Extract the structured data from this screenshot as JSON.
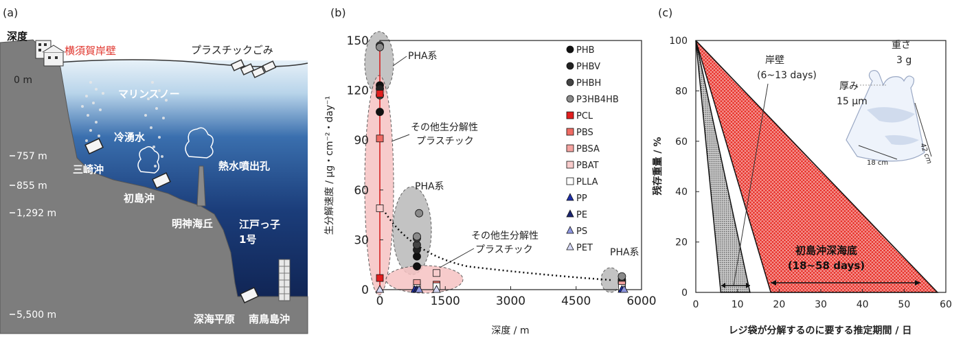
{
  "panel_labels": [
    "(a)",
    "(b)",
    "(c)"
  ],
  "panel_a": {
    "depth_heading": "深度",
    "surface_depth": "0 m",
    "yokosuka_label": "横須賀岸壁",
    "plastic_waste_label": "プラスチックごみ",
    "marine_snow_label": "マリンスノー",
    "cold_seep_label": "冷湧水",
    "hydrothermal_vent_label": "熱水噴出孔",
    "misaki_label": "三崎沖",
    "hatsushima_label": "初島沖",
    "myojin_label": "明神海丘",
    "edokko_label": "江戸っ子\n1号",
    "abyssal_plain_label": "深海平原",
    "minamitorishima_label": "南鳥島沖",
    "depth_marks": [
      "757 m",
      "855 m",
      "1,292 m",
      "5,500 m"
    ],
    "colors": {
      "land": "#7d7d7d",
      "sea_top": "#dbeaf5",
      "sea_mid": "#2a5a98",
      "sea_deep": "#0d1f4c",
      "yokosuka": "#e0342c"
    }
  },
  "chart_data": [
    {
      "type": "scatter",
      "panel": "(b)",
      "xlabel": "深度 / m",
      "ylabel": "生分解速度 / μg・cm⁻²・day⁻¹",
      "xlim": [
        0,
        6000
      ],
      "ylim": [
        0,
        150
      ],
      "xticks": [
        0,
        1500,
        3000,
        4500,
        6000
      ],
      "yticks": [
        0,
        30,
        60,
        90,
        120,
        150
      ],
      "series": [
        {
          "name": "PHB",
          "marker": "circle",
          "color": "#111111",
          "x": [
            0,
            0,
            850,
            850,
            5550
          ],
          "y": [
            123,
            107,
            20,
            14,
            5
          ]
        },
        {
          "name": "PHBV",
          "marker": "circle",
          "color": "#222222",
          "x": [
            0,
            850,
            5550
          ],
          "y": [
            121,
            24,
            6
          ]
        },
        {
          "name": "PHBH",
          "marker": "circle",
          "color": "#444444",
          "x": [
            0,
            0,
            850,
            850,
            5550
          ],
          "y": [
            117,
            147,
            27,
            31,
            4
          ]
        },
        {
          "name": "P3HB4HB",
          "marker": "circle",
          "color": "#8a8a8a",
          "x": [
            0,
            900,
            850,
            5550
          ],
          "y": [
            146,
            46,
            32,
            8
          ]
        },
        {
          "name": "PCL",
          "marker": "square",
          "color": "#e11f1f",
          "x": [
            0,
            0
          ],
          "y": [
            118,
            7
          ]
        },
        {
          "name": "PBS",
          "marker": "square",
          "color": "#ef6b63",
          "x": [
            0,
            850,
            1300,
            5550
          ],
          "y": [
            91,
            3,
            3,
            3
          ]
        },
        {
          "name": "PBSA",
          "marker": "square",
          "color": "#f4a3a0",
          "x": [
            850,
            5550
          ],
          "y": [
            4,
            3
          ]
        },
        {
          "name": "PBAT",
          "marker": "square",
          "color": "#f8cccc",
          "x": [
            0,
            1300
          ],
          "y": [
            49,
            10
          ]
        },
        {
          "name": "PLLA",
          "marker": "square",
          "color": "#ffffff",
          "x": [
            850,
            1300,
            5550
          ],
          "y": [
            1,
            2,
            1
          ]
        },
        {
          "name": "PP",
          "marker": "triangle",
          "color": "#1f2fa8",
          "x": [
            0,
            800,
            1300,
            5550
          ],
          "y": [
            0,
            0,
            0,
            0
          ]
        },
        {
          "name": "PE",
          "marker": "triangle",
          "color": "#1a2470",
          "x": [
            850
          ],
          "y": [
            0
          ]
        },
        {
          "name": "PS",
          "marker": "triangle",
          "color": "#8d95de",
          "x": [
            900,
            5600
          ],
          "y": [
            0,
            0
          ]
        },
        {
          "name": "PET",
          "marker": "triangle",
          "color": "#d5d8f5",
          "x": [
            0,
            1300
          ],
          "y": [
            0,
            0
          ]
        }
      ],
      "annotations": [
        "PHA系",
        "その他生分解性\nプラスチック",
        "PHA系",
        "その他生分解性\nプラスチック",
        "PHA系"
      ]
    },
    {
      "type": "area",
      "panel": "(c)",
      "xlabel": "レジ袋が分解するのに要する推定期間 / 日",
      "ylabel": "残存重量 / %",
      "xlim": [
        0,
        60
      ],
      "ylim": [
        0,
        100
      ],
      "xticks": [
        0,
        10,
        20,
        30,
        40,
        50,
        60
      ],
      "yticks": [
        0,
        20,
        40,
        60,
        80,
        100
      ],
      "series": [
        {
          "name": "岸壁",
          "x_range_days": [
            6,
            13
          ],
          "color": "#bdbdbd"
        },
        {
          "name": "初島沖深海底",
          "x_range_days": [
            18,
            58
          ],
          "color": "#e8322a"
        }
      ],
      "annotations": {
        "pier_label": "岸壁",
        "pier_range": "(6~13 days)",
        "deepsea_label": "初島沖深海底",
        "deepsea_range": "(18~58 days)",
        "weight_label": "重さ",
        "weight_value": "3 g",
        "thickness_label": "厚み",
        "thickness_value": "15 μm",
        "bag_height": "42 cm",
        "bag_width": "18 cm"
      }
    }
  ]
}
